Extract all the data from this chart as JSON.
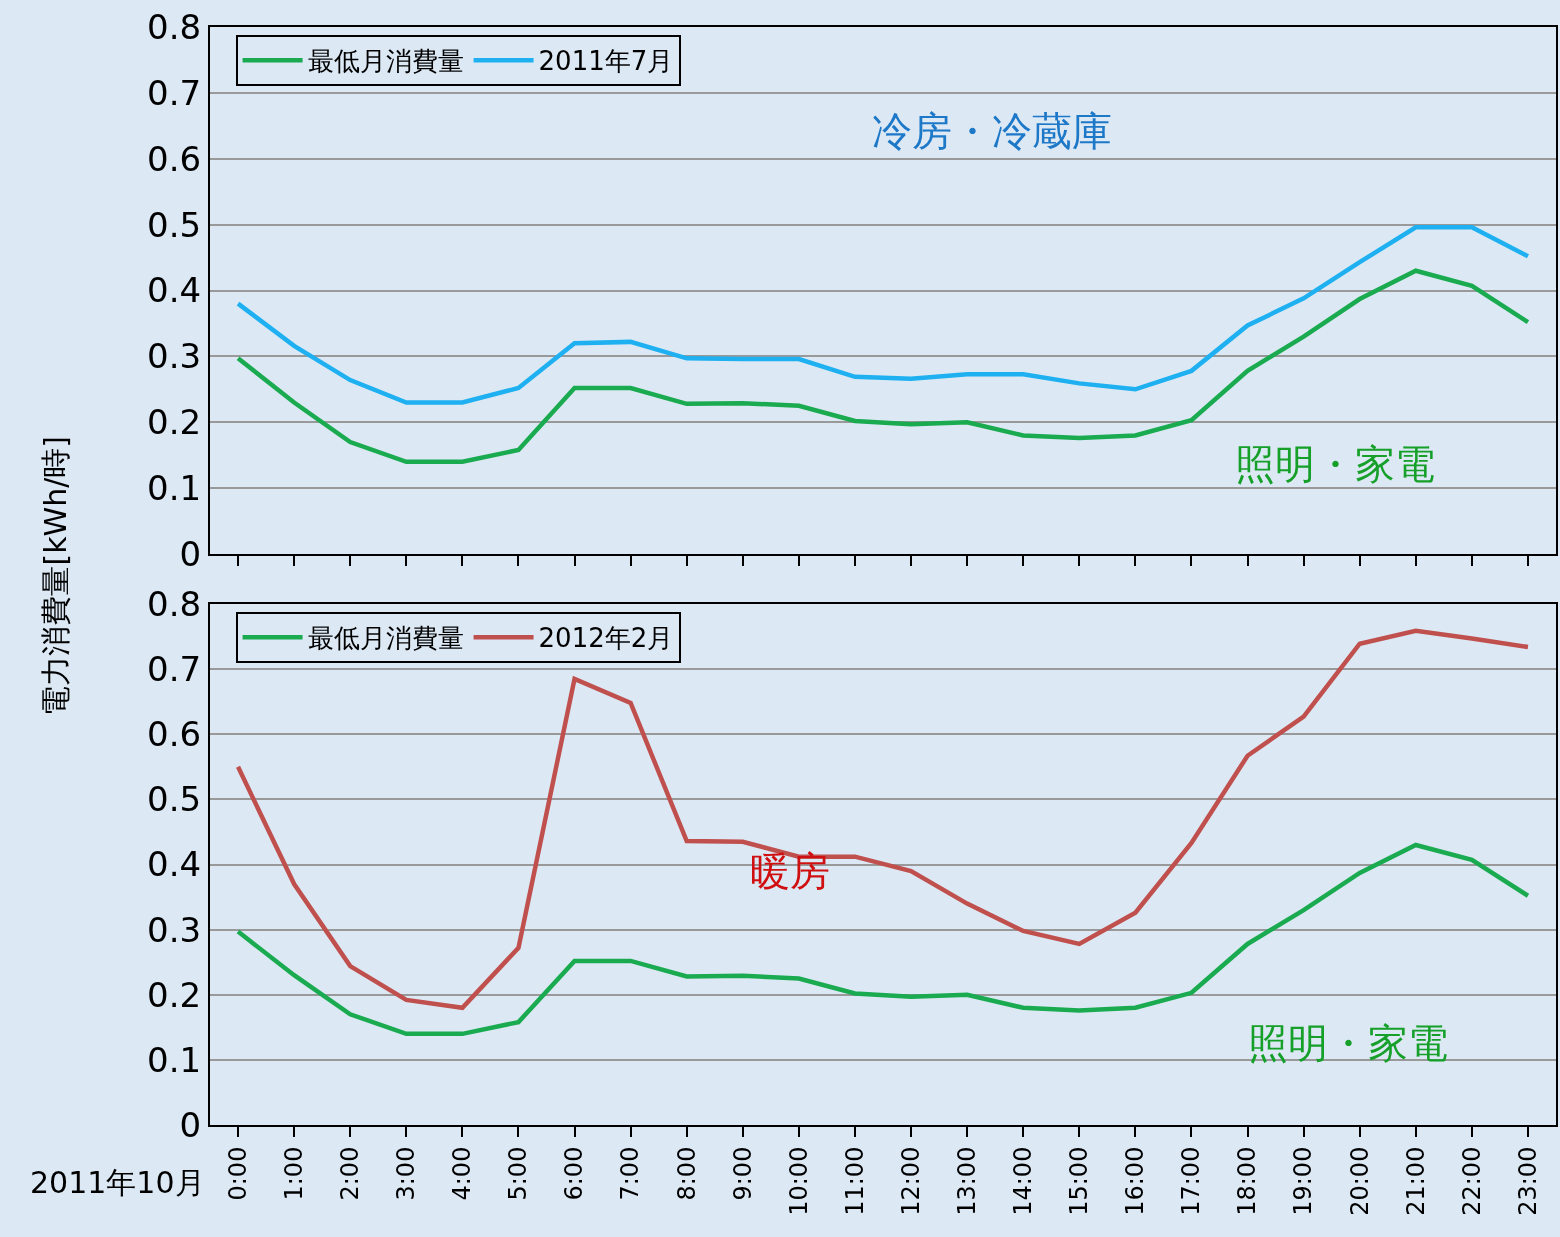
{
  "chart_data": [
    {
      "type": "line",
      "ylabel": "電力消費量[kWh/時]",
      "legend": "top left",
      "grid": "y",
      "tick_labels": "y",
      "marker": "none",
      "line_style": "solid",
      "categories": [
        null,
        null,
        null,
        null,
        null,
        null,
        null,
        null,
        null,
        null,
        null,
        null,
        null,
        null,
        null,
        null,
        null,
        null,
        null,
        null,
        null,
        null,
        null,
        null
      ],
      "ylim": [
        0,
        0.8
      ],
      "yticks": [
        0,
        0.1,
        0.2,
        0.3,
        0.4,
        0.5,
        0.6,
        0.7,
        0.8
      ],
      "series": [
        {
          "name": "最低月消費量",
          "color": "#1aaa50",
          "values": [
            0.297,
            0.23,
            0.17,
            0.14,
            0.14,
            0.158,
            0.252,
            0.252,
            0.228,
            0.229,
            0.225,
            0.202,
            0.197,
            0.2,
            0.18,
            0.176,
            0.18,
            0.203,
            0.278,
            0.33,
            0.387,
            0.43,
            0.407,
            0.352
          ]
        },
        {
          "name": "2011年7月",
          "color": "#1eb0f0",
          "values": [
            0.38,
            0.316,
            0.264,
            0.23,
            0.23,
            0.252,
            0.32,
            0.322,
            0.297,
            0.296,
            0.296,
            0.269,
            0.266,
            0.273,
            0.273,
            0.259,
            0.25,
            0.278,
            0.347,
            0.388,
            0.443,
            0.496,
            0.496,
            0.452
          ]
        }
      ],
      "annotations": [
        "冷房・冷蔵庫",
        "照明・家電"
      ]
    },
    {
      "type": "line",
      "xlabel": "2011年10月",
      "legend": "top left",
      "grid": "y",
      "marker": "none",
      "line_style": "solid",
      "categories": [
        "0:00",
        "1:00",
        "2:00",
        "3:00",
        "4:00",
        "5:00",
        "6:00",
        "7:00",
        "8:00",
        "9:00",
        "10:00",
        "11:00",
        "12:00",
        "13:00",
        "14:00",
        "15:00",
        "16:00",
        "17:00",
        "18:00",
        "19:00",
        "20:00",
        "21:00",
        "22:00",
        "23:00"
      ],
      "ylim": [
        0,
        0.8
      ],
      "yticks": [
        0,
        0.1,
        0.2,
        0.3,
        0.4,
        0.5,
        0.6,
        0.7,
        0.8
      ],
      "series": [
        {
          "name": "最低月消費量",
          "color": "#1aaa50",
          "values": [
            0.297,
            0.23,
            0.17,
            0.14,
            0.14,
            0.158,
            0.252,
            0.252,
            0.228,
            0.229,
            0.225,
            0.202,
            0.197,
            0.2,
            0.18,
            0.176,
            0.18,
            0.203,
            0.278,
            0.33,
            0.387,
            0.43,
            0.407,
            0.352
          ]
        },
        {
          "name": "2012年2月",
          "color": "#c0504d",
          "values": [
            0.55,
            0.37,
            0.244,
            0.192,
            0.18,
            0.272,
            0.685,
            0.648,
            0.436,
            0.435,
            0.412,
            0.412,
            0.39,
            0.34,
            0.298,
            0.278,
            0.326,
            0.433,
            0.567,
            0.627,
            0.739,
            0.759,
            0.747,
            0.734
          ]
        }
      ],
      "annotations": [
        "暖房",
        "照明・家電"
      ]
    }
  ]
}
